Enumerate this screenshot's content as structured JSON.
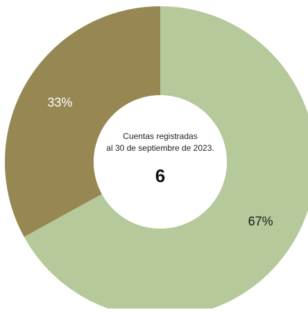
{
  "chart_data": {
    "type": "pie",
    "donut": true,
    "slices": [
      {
        "label": "67%",
        "value": 67,
        "color": "#b5c99a"
      },
      {
        "label": "33%",
        "value": 33,
        "color": "#978752"
      }
    ],
    "center": {
      "caption_line1": "Cuentas registradas",
      "caption_line2": "al 30 de septiembre de 2023.",
      "total": "6"
    }
  }
}
